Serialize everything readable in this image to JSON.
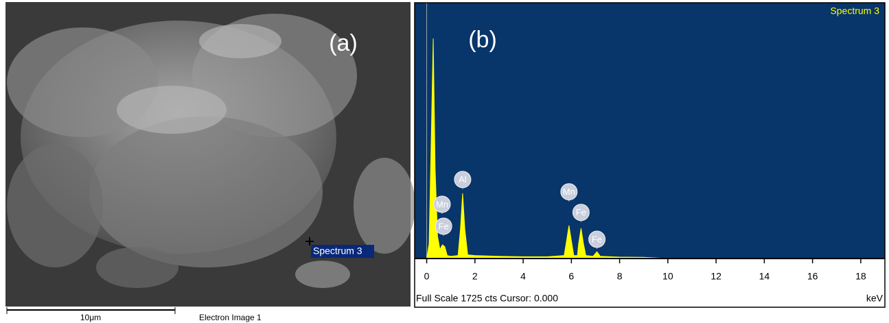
{
  "image_panel": {
    "panel_label": "(a)",
    "marker_label": "Spectrum 3",
    "scale_label": "10μm",
    "caption": "Electron Image 1"
  },
  "chart_data": {
    "type": "area",
    "panel_label": "(b)",
    "title": "Spectrum 3",
    "footer": "Full Scale 1725 cts Cursor: 0.000",
    "x_label": "keV",
    "color": "#ffff00",
    "background": "#08356a",
    "x": [
      0,
      0.1,
      0.2,
      0.27,
      0.35,
      0.45,
      0.55,
      0.65,
      0.75,
      0.85,
      1.0,
      1.3,
      1.4,
      1.49,
      1.58,
      1.7,
      2.0,
      3.0,
      4.0,
      5.0,
      5.7,
      5.8,
      5.9,
      6.0,
      6.1,
      6.25,
      6.3,
      6.4,
      6.5,
      6.6,
      6.9,
      7.06,
      7.2,
      8,
      9,
      10,
      12,
      19
    ],
    "values": [
      0,
      100,
      900,
      1484,
      600,
      150,
      60,
      93,
      80,
      20,
      15,
      20,
      200,
      440,
      200,
      25,
      20,
      15,
      12,
      12,
      20,
      120,
      223,
      120,
      20,
      20,
      100,
      204,
      100,
      20,
      15,
      46,
      15,
      10,
      8,
      0,
      0,
      0
    ],
    "peak_labels": [
      {
        "label": "Mn",
        "x": 0.64,
        "y": 366
      },
      {
        "label": "Fe",
        "x": 0.7,
        "y": 218
      },
      {
        "label": "Al",
        "x": 1.49,
        "y": 533
      },
      {
        "label": "Mn",
        "x": 5.9,
        "y": 450
      },
      {
        "label": "Fe",
        "x": 6.4,
        "y": 311
      },
      {
        "label": "Fe",
        "x": 7.06,
        "y": 130
      }
    ],
    "xlim": [
      -0.5,
      19
    ],
    "ylim": [
      0,
      1725
    ],
    "xticks": [
      0,
      2,
      4,
      6,
      8,
      10,
      12,
      14,
      16,
      18
    ]
  }
}
